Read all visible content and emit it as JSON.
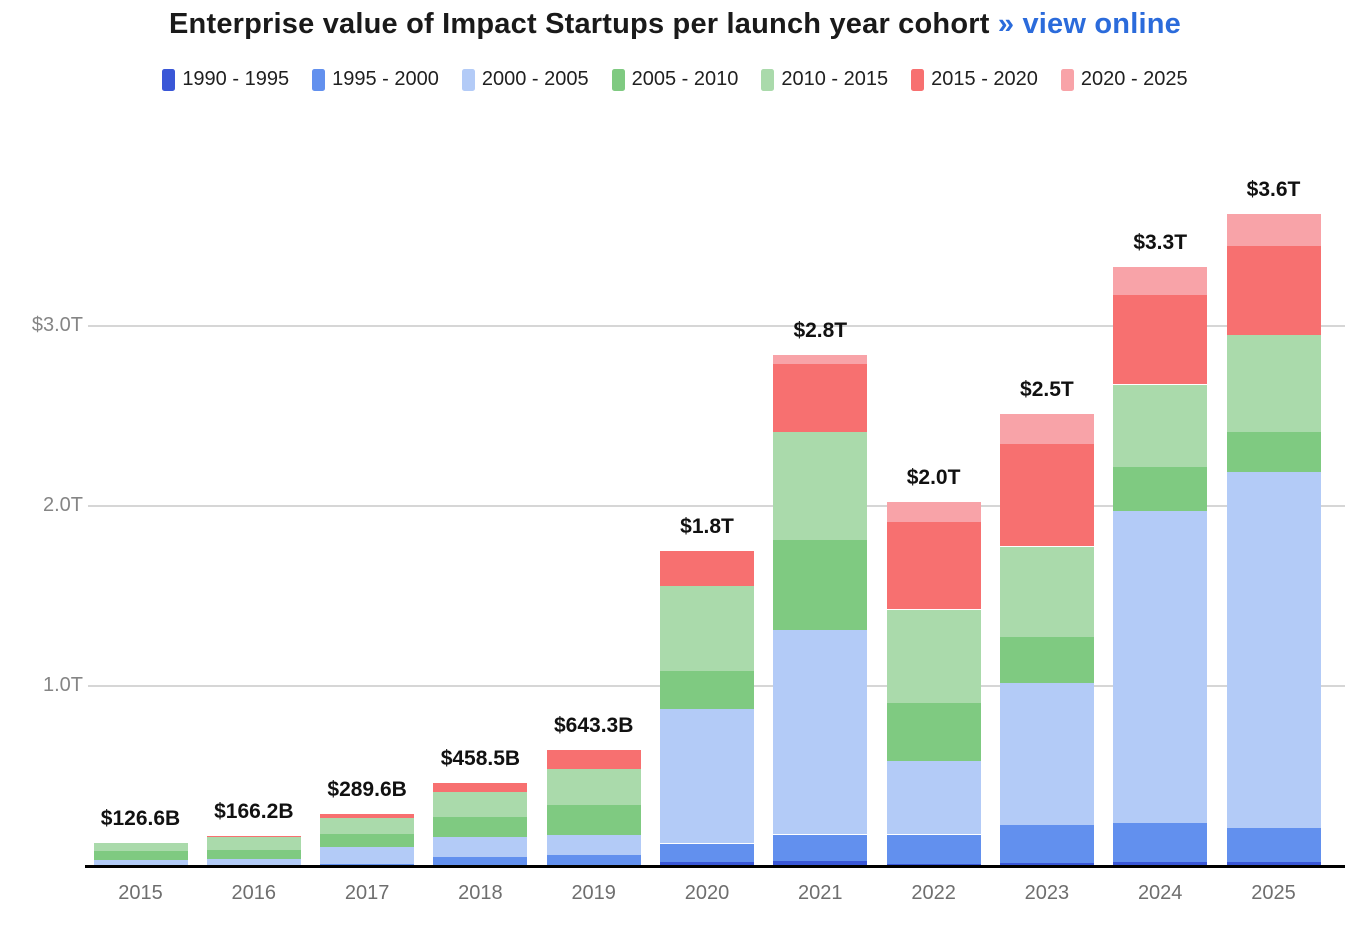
{
  "header": {
    "title": "Enterprise value of Impact Startups per launch year cohort",
    "link_label": "» view online"
  },
  "colors": {
    "link_blue": "#2b6bdb",
    "gridline": "#d6d6d6",
    "axis_line": "#000000",
    "y_tick_text": "#858585",
    "x_tick_text": "#6e6e6e",
    "total_label_text": "#111111"
  },
  "chart_data": {
    "type": "bar",
    "stacked": true,
    "title": "Enterprise value of Impact Startups per launch year cohort",
    "unit": "billions USD",
    "grid": true,
    "legend_position": "top",
    "ylim_billions": [
      0,
      3720
    ],
    "categories": [
      "2015",
      "2016",
      "2017",
      "2018",
      "2019",
      "2020",
      "2021",
      "2022",
      "2023",
      "2024",
      "2025"
    ],
    "series": [
      {
        "name": "1990 - 1995",
        "color": "#3a57d7",
        "values": [
          2,
          2,
          3,
          4,
          5,
          20,
          30,
          10,
          15,
          20,
          20
        ]
      },
      {
        "name": "1995 - 2000",
        "color": "#6290ee",
        "values": [
          5,
          5,
          8,
          46,
          55,
          105,
          145,
          165,
          215,
          220,
          190
        ]
      },
      {
        "name": "2000 - 2005",
        "color": "#b3cbf7",
        "values": [
          28,
          31,
          94,
          112,
          112,
          745,
          1135,
          410,
          785,
          1730,
          1980
        ]
      },
      {
        "name": "2005 - 2010",
        "color": "#7fca81",
        "values": [
          46,
          51,
          74,
          108,
          165,
          215,
          500,
          320,
          260,
          245,
          220
        ]
      },
      {
        "name": "2010 - 2015",
        "color": "#aadaab",
        "values": [
          45.6,
          74,
          85,
          140,
          200,
          470,
          600,
          520,
          500,
          460,
          540
        ]
      },
      {
        "name": "2015 - 2020",
        "color": "#f77070",
        "values": [
          0,
          3.2,
          25.6,
          48.5,
          106.3,
          195,
          380,
          485,
          570,
          495,
          495
        ]
      },
      {
        "name": "2020 - 2025",
        "color": "#f8a3a8",
        "values": [
          0,
          0,
          0,
          0,
          0,
          0,
          50,
          110,
          165,
          160,
          175
        ]
      }
    ],
    "totals_display": [
      "$126.6B",
      "$166.2B",
      "$289.6B",
      "$458.5B",
      "$643.3B",
      "$1.8T",
      "$2.8T",
      "$2.0T",
      "$2.5T",
      "$3.3T",
      "$3.6T"
    ],
    "y_ticks": [
      {
        "label": "$3.0T",
        "value_billions": 3000
      },
      {
        "label": "2.0T",
        "value_billions": 2000
      },
      {
        "label": "1.0T",
        "value_billions": 1000
      }
    ]
  }
}
